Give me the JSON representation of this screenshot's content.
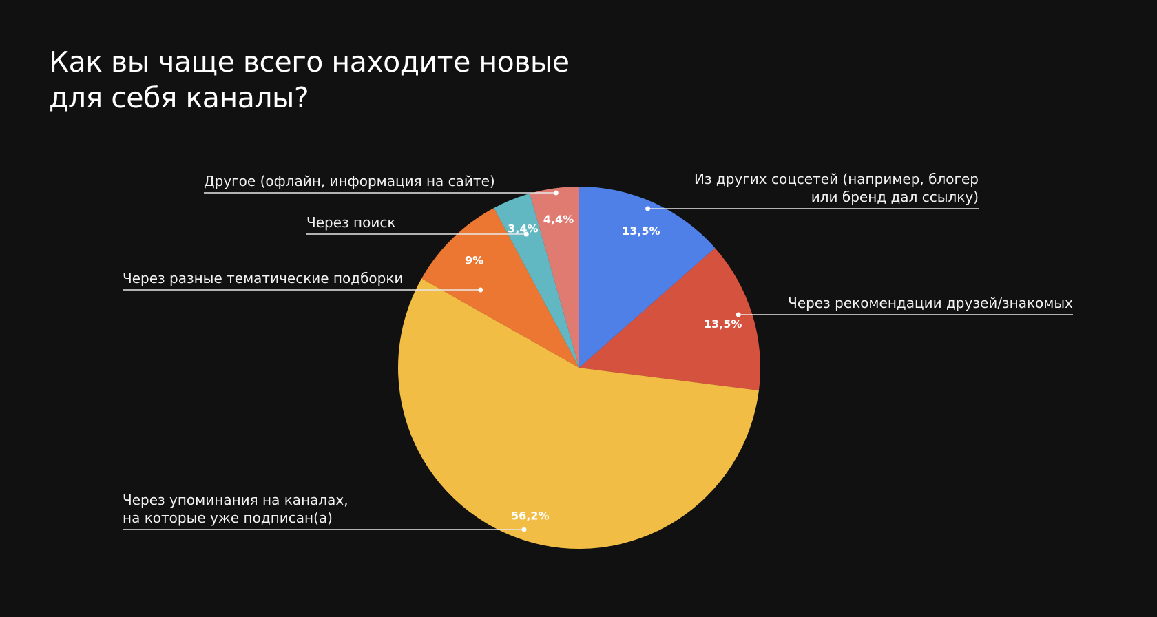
{
  "title_lines": [
    "Как вы чаще всего находите новые",
    "для себя каналы?"
  ],
  "chart_data": {
    "type": "pie",
    "title": "Как вы чаще всего находите новые для себя каналы?",
    "start_angle_deg": 0,
    "direction": "clockwise",
    "slices": [
      {
        "label": [
          "Из других соцсетей (например, блогер",
          "или бренд дал ссылку)"
        ],
        "value": 13.5,
        "display": "13,5%",
        "color": "#4f80e7"
      },
      {
        "label": [
          "Через рекомендации друзей/знакомых"
        ],
        "value": 13.5,
        "display": "13,5%",
        "color": "#d5523f"
      },
      {
        "label": [
          "Через упоминания на каналах,",
          "на которые уже подписан(а)"
        ],
        "value": 56.2,
        "display": "56,2%",
        "color": "#f1bd45"
      },
      {
        "label": [
          "Через разные тематические подборки"
        ],
        "value": 9.0,
        "display": "9%",
        "color": "#ec7733"
      },
      {
        "label": [
          "Через поиск"
        ],
        "value": 3.4,
        "display": "3,4%",
        "color": "#62b8c2"
      },
      {
        "label": [
          "Другое (офлайн, информация на сайте)"
        ],
        "value": 4.4,
        "display": "4,4%",
        "color": "#e07b72"
      }
    ]
  }
}
